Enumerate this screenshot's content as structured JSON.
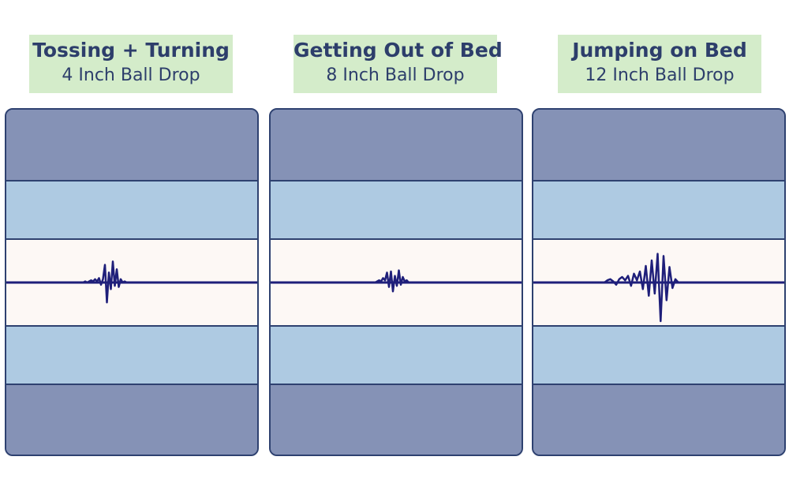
{
  "chart_data": [
    {
      "type": "line",
      "title": "Tossing + Turning",
      "subtitle": "4 Inch Ball Drop",
      "x": [
        0,
        1,
        2,
        3,
        4,
        5,
        6,
        7,
        8,
        9,
        10,
        11,
        12,
        13,
        14,
        15,
        16,
        17,
        18,
        19,
        20,
        21,
        22,
        23,
        24,
        25,
        26,
        27,
        28,
        29,
        30,
        31,
        32,
        33,
        34,
        35,
        36,
        37,
        38,
        39,
        40
      ],
      "values": [
        0,
        0,
        0,
        0,
        0,
        0,
        0,
        0,
        0.1,
        0,
        0.1,
        0.2,
        0.1,
        0.3,
        0.1,
        0.4,
        -0.2,
        0.3,
        1.6,
        -1.8,
        0.9,
        -0.6,
        1.9,
        -0.3,
        1.2,
        -0.4,
        0.3,
        0,
        0.1,
        0,
        0,
        0,
        0,
        0,
        0,
        0,
        0,
        0,
        0,
        0,
        0
      ]
    },
    {
      "type": "line",
      "title": "Getting Out of Bed",
      "subtitle": "8 Inch Ball Drop",
      "x": [
        0,
        1,
        2,
        3,
        4,
        5,
        6,
        7,
        8,
        9,
        10,
        11,
        12,
        13,
        14,
        15,
        16,
        17,
        18,
        19,
        20,
        21,
        22,
        23,
        24,
        25,
        26,
        27,
        28,
        29,
        30,
        31,
        32,
        33,
        34,
        35,
        36,
        37,
        38,
        39,
        40
      ],
      "values": [
        0,
        0,
        0,
        0,
        0,
        0,
        0,
        0,
        0,
        0,
        0,
        0,
        0,
        0,
        0.1,
        0.2,
        0.1,
        0.4,
        0.2,
        0.9,
        -0.4,
        1.0,
        -0.8,
        0.6,
        -0.3,
        1.1,
        -0.2,
        0.5,
        0.1,
        0.2,
        0,
        0,
        0,
        0,
        0,
        0,
        0,
        0,
        0,
        0,
        0
      ]
    },
    {
      "type": "line",
      "title": "Jumping on Bed",
      "subtitle": "12 Inch Ball Drop",
      "x": [
        0,
        1,
        2,
        3,
        4,
        5,
        6,
        7,
        8,
        9,
        10,
        11,
        12,
        13,
        14,
        15,
        16,
        17,
        18,
        19,
        20,
        21,
        22,
        23,
        24,
        25,
        26,
        27,
        28,
        29,
        30,
        31,
        32,
        33,
        34,
        35,
        36,
        37,
        38,
        39,
        40
      ],
      "values": [
        0,
        0,
        0,
        0,
        0,
        0,
        0,
        0,
        0,
        0.2,
        0.3,
        0.1,
        -0.2,
        0.3,
        0.5,
        0.2,
        0.6,
        -0.3,
        0.8,
        0.2,
        1.0,
        -0.6,
        1.5,
        -1.2,
        2.0,
        -1.0,
        2.6,
        -3.5,
        2.4,
        -1.6,
        1.4,
        -0.5,
        0.3,
        0,
        0,
        0,
        0,
        0,
        0,
        0,
        0
      ]
    }
  ]
}
